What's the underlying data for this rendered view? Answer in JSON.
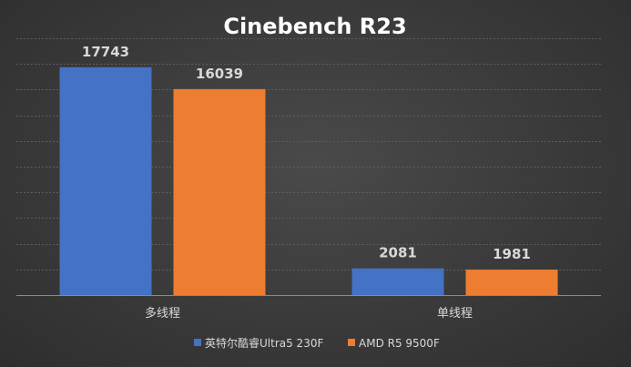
{
  "chart_data": {
    "type": "bar",
    "title": "Cinebench R23",
    "categories": [
      "多线程",
      "单线程"
    ],
    "series": [
      {
        "name": "英特尔酷睿Ultra5 230F",
        "color": "#4472c4",
        "values": [
          17743,
          2081
        ]
      },
      {
        "name": "AMD R5 9500F",
        "color": "#ed7d31",
        "values": [
          16039,
          1981
        ]
      }
    ],
    "ylim": [
      0,
      20000
    ],
    "y_gridlines": [
      0,
      2000,
      4000,
      6000,
      8000,
      10000,
      12000,
      14000,
      16000,
      18000,
      20000
    ],
    "y_tick_labels_visible": false,
    "grid": true,
    "legend": "bottom"
  }
}
